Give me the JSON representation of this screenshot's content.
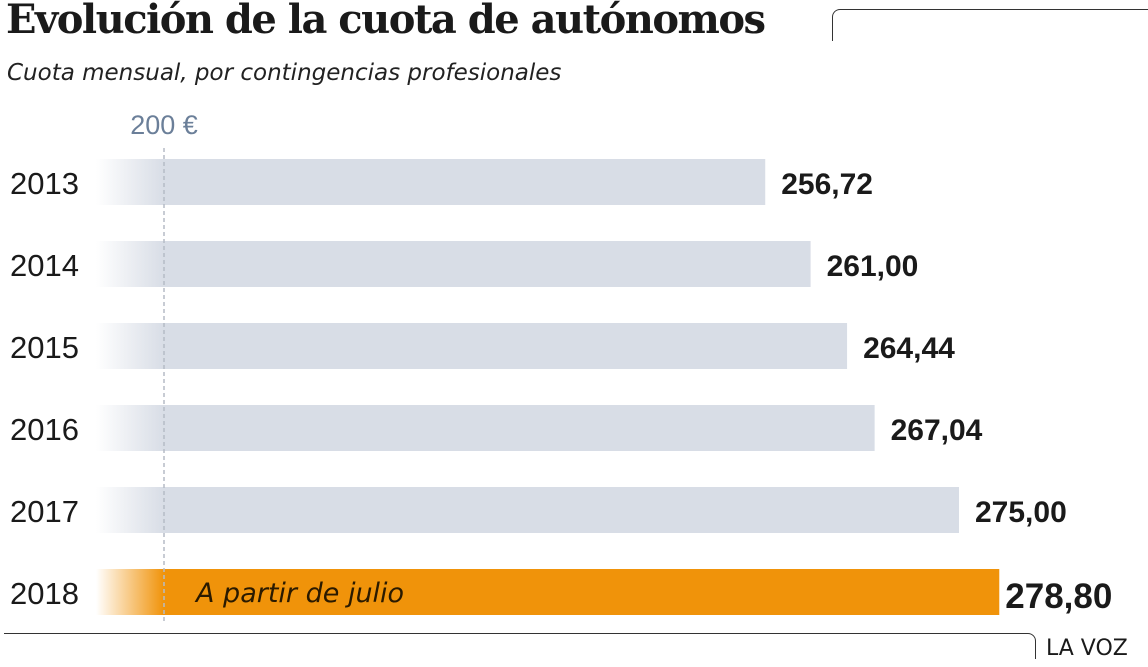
{
  "header": {
    "title": "Evolución de la cuota de autónomos",
    "subtitle": "Cuota mensual, por contingencias profesionales"
  },
  "footer": {
    "source": "LA VOZ"
  },
  "chart_data": {
    "type": "bar",
    "orientation": "horizontal",
    "title": "Evolución de la cuota de autónomos",
    "subtitle": "Cuota mensual, por contingencias profesionales",
    "reference_line": {
      "value": 200,
      "label": "200 €"
    },
    "xlim": [
      186,
      282
    ],
    "grid": false,
    "legend": "none",
    "categories": [
      "2013",
      "2014",
      "2015",
      "2016",
      "2017",
      "2018"
    ],
    "values": [
      256.72,
      261.0,
      264.44,
      267.04,
      275.0,
      278.8
    ],
    "value_labels": [
      "256,72",
      "261,00",
      "264,44",
      "267,04",
      "275,00",
      "278,80"
    ],
    "annotations": [
      {
        "category": "2018",
        "text": "A partir de julio"
      }
    ],
    "colors": {
      "bar": "#d8dde6",
      "highlight": "#f0930a",
      "reference": "#6b7f99",
      "text": "#1a1a1a"
    },
    "highlight_category": "2018"
  }
}
